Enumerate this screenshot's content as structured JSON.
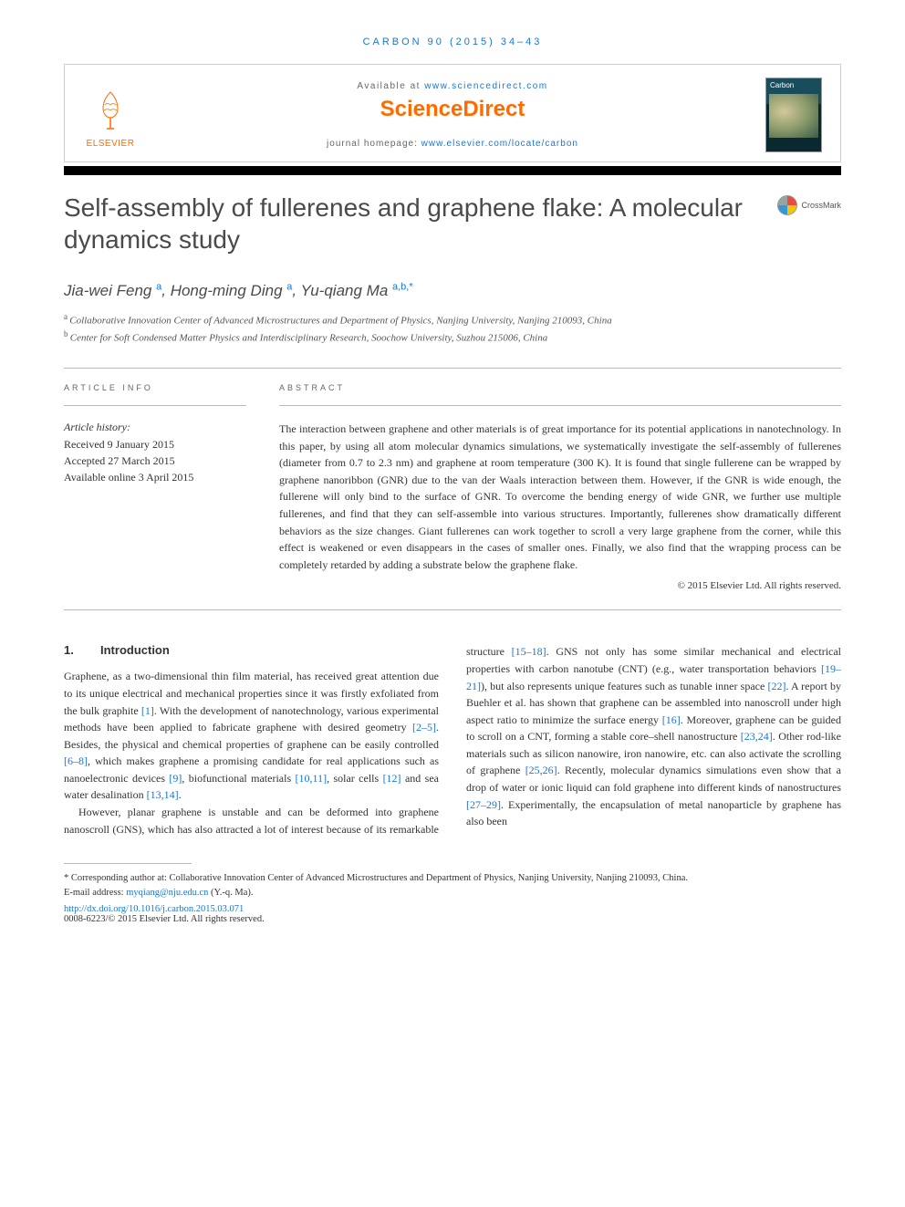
{
  "journal_ref": "CARBON 90 (2015) 34–43",
  "header": {
    "available_prefix": "Available at ",
    "available_url": "www.sciencedirect.com",
    "sd_logo": "ScienceDirect",
    "homepage_prefix": "journal homepage: ",
    "homepage_url": "www.elsevier.com/locate/carbon",
    "elsevier": "ELSEVIER",
    "cover_title": "Carbon"
  },
  "crossmark": "CrossMark",
  "title": "Self-assembly of fullerenes and graphene flake: A molecular dynamics study",
  "authors_html": "Jia-wei Feng <sup>a</sup>, Hong-ming Ding <sup>a</sup>, Yu-qiang Ma <sup>a,b,*</sup>",
  "authors": [
    {
      "name": "Jia-wei Feng",
      "sup": "a"
    },
    {
      "name": "Hong-ming Ding",
      "sup": "a"
    },
    {
      "name": "Yu-qiang Ma",
      "sup": "a,b,*"
    }
  ],
  "affiliations": [
    {
      "sup": "a",
      "text": "Collaborative Innovation Center of Advanced Microstructures and Department of Physics, Nanjing University, Nanjing 210093, China"
    },
    {
      "sup": "b",
      "text": "Center for Soft Condensed Matter Physics and Interdisciplinary Research, Soochow University, Suzhou 215006, China"
    }
  ],
  "info": {
    "label": "ARTICLE INFO",
    "history_label": "Article history:",
    "received": "Received 9 January 2015",
    "accepted": "Accepted 27 March 2015",
    "online": "Available online 3 April 2015"
  },
  "abstract": {
    "label": "ABSTRACT",
    "text": "The interaction between graphene and other materials is of great importance for its potential applications in nanotechnology. In this paper, by using all atom molecular dynamics simulations, we systematically investigate the self-assembly of fullerenes (diameter from 0.7 to 2.3 nm) and graphene at room temperature (300 K). It is found that single fullerene can be wrapped by graphene nanoribbon (GNR) due to the van der Waals interaction between them. However, if the GNR is wide enough, the fullerene will only bind to the surface of GNR. To overcome the bending energy of wide GNR, we further use multiple fullerenes, and find that they can self-assemble into various structures. Importantly, fullerenes show dramatically different behaviors as the size changes. Giant fullerenes can work together to scroll a very large graphene from the corner, while this effect is weakened or even disappears in the cases of smaller ones. Finally, we also find that the wrapping process can be completely retarded by adding a substrate below the graphene flake.",
    "copyright": "© 2015 Elsevier Ltd. All rights reserved."
  },
  "intro": {
    "num": "1.",
    "heading": "Introduction",
    "para1_parts": [
      "Graphene, as a two-dimensional thin film material, has received great attention due to its unique electrical and mechanical properties since it was firstly exfoliated from the bulk graphite ",
      "[1]",
      ". With the development of nanotechnology, various experimental methods have been applied to fabricate graphene with desired geometry ",
      "[2–5]",
      ". Besides, the physical and chemical properties of graphene can be easily controlled ",
      "[6–8]",
      ", which makes graphene a promising candidate for real applications such as nanoelectronic devices ",
      "[9]",
      ", biofunctional materials ",
      "[10,11]",
      ", solar cells ",
      "[12]",
      " and sea water desalination ",
      "[13,14]",
      "."
    ],
    "para2_parts": [
      "However, planar graphene is unstable and can be deformed into graphene nanoscroll (GNS), which has also ",
      "attracted a lot of interest because of its remarkable structure ",
      "[15–18]",
      ". GNS not only has some similar mechanical and electrical properties with carbon nanotube (CNT) (e.g., water transportation behaviors ",
      "[19–21]",
      "), but also represents unique features such as tunable inner space ",
      "[22]",
      ". A report by Buehler et al. has shown that graphene can be assembled into nanoscroll under high aspect ratio to minimize the surface energy ",
      "[16]",
      ". Moreover, graphene can be guided to scroll on a CNT, forming a stable core–shell nanostructure ",
      "[23,24]",
      ". Other rod-like materials such as silicon nanowire, iron nanowire, etc. can also activate the scrolling of graphene ",
      "[25,26]",
      ". Recently, molecular dynamics simulations even show that a drop of water or ionic liquid can fold graphene into different kinds of nanostructures ",
      "[27–29]",
      ". Experimentally, the encapsulation of metal nanoparticle by graphene has also been"
    ]
  },
  "footnote": {
    "corresponding": "* Corresponding author at: Collaborative Innovation Center of Advanced Microstructures and Department of Physics, Nanjing University, Nanjing 210093, China.",
    "email_label": "E-mail address: ",
    "email": "myqiang@nju.edu.cn",
    "email_suffix": " (Y.-q. Ma).",
    "doi": "http://dx.doi.org/10.1016/j.carbon.2015.03.071",
    "issn": "0008-6223/© 2015 Elsevier Ltd. All rights reserved."
  },
  "colors": {
    "link": "#1976d2",
    "elsevier_orange": "#ff6b00",
    "text": "#333333",
    "title": "#4a4a4a"
  }
}
